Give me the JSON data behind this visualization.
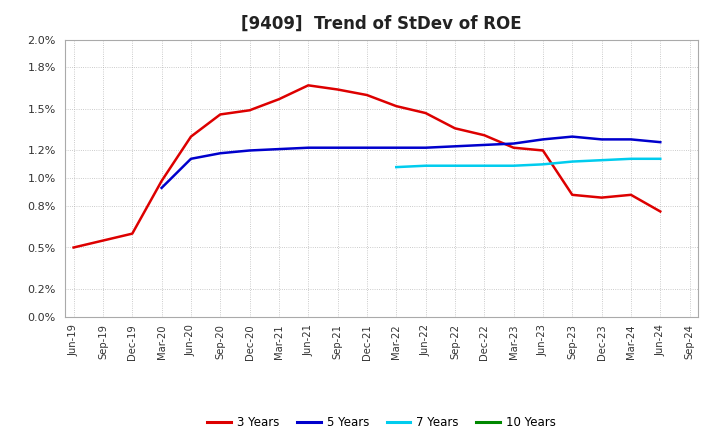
{
  "title": "[9409]  Trend of StDev of ROE",
  "title_fontsize": 12,
  "background_color": "#ffffff",
  "plot_bg_color": "#ffffff",
  "grid_color": "#aaaaaa",
  "ylim": [
    0.0,
    0.02
  ],
  "yticks": [
    0.0,
    0.002,
    0.005,
    0.008,
    0.01,
    0.012,
    0.015,
    0.018,
    0.02
  ],
  "ytick_labels": [
    "0.0%",
    "0.2%",
    "0.5%",
    "0.8%",
    "1.0%",
    "1.2%",
    "1.5%",
    "1.8%",
    "2.0%"
  ],
  "xtick_labels": [
    "Jun-19",
    "Sep-19",
    "Dec-19",
    "Mar-20",
    "Jun-20",
    "Sep-20",
    "Dec-20",
    "Mar-21",
    "Jun-21",
    "Sep-21",
    "Dec-21",
    "Mar-22",
    "Jun-22",
    "Sep-22",
    "Dec-22",
    "Mar-23",
    "Jun-23",
    "Sep-23",
    "Dec-23",
    "Mar-24",
    "Jun-24",
    "Sep-24"
  ],
  "series_3y": {
    "color": "#dd0000",
    "label": "3 Years",
    "x": [
      0,
      1,
      2,
      3,
      4,
      5,
      6,
      7,
      8,
      9,
      10,
      11,
      12,
      13,
      14,
      15,
      16,
      17,
      18,
      19,
      20
    ],
    "y": [
      0.005,
      0.0055,
      0.006,
      0.0098,
      0.013,
      0.0146,
      0.0149,
      0.0157,
      0.0167,
      0.0164,
      0.016,
      0.0152,
      0.0147,
      0.0136,
      0.0131,
      0.0122,
      0.012,
      0.0088,
      0.0086,
      0.0088,
      0.0076
    ]
  },
  "series_5y": {
    "color": "#0000cc",
    "label": "5 Years",
    "x": [
      3,
      4,
      5,
      6,
      7,
      8,
      9,
      10,
      11,
      12,
      13,
      14,
      15,
      16,
      17,
      18,
      19,
      20
    ],
    "y": [
      0.0093,
      0.0114,
      0.0118,
      0.012,
      0.0121,
      0.0122,
      0.0122,
      0.0122,
      0.0122,
      0.0122,
      0.0123,
      0.0124,
      0.0125,
      0.0128,
      0.013,
      0.0128,
      0.0128,
      0.0126
    ]
  },
  "series_7y": {
    "color": "#00ccee",
    "label": "7 Years",
    "x": [
      11,
      12,
      13,
      14,
      15,
      16,
      17,
      18,
      19,
      20
    ],
    "y": [
      0.0108,
      0.0109,
      0.0109,
      0.0109,
      0.0109,
      0.011,
      0.0112,
      0.0113,
      0.0114,
      0.0114
    ]
  },
  "series_10y": {
    "color": "#008800",
    "label": "10 Years",
    "x": [],
    "y": []
  },
  "legend_labels": [
    "3 Years",
    "5 Years",
    "7 Years",
    "10 Years"
  ],
  "legend_colors": [
    "#dd0000",
    "#0000cc",
    "#00ccee",
    "#008800"
  ]
}
